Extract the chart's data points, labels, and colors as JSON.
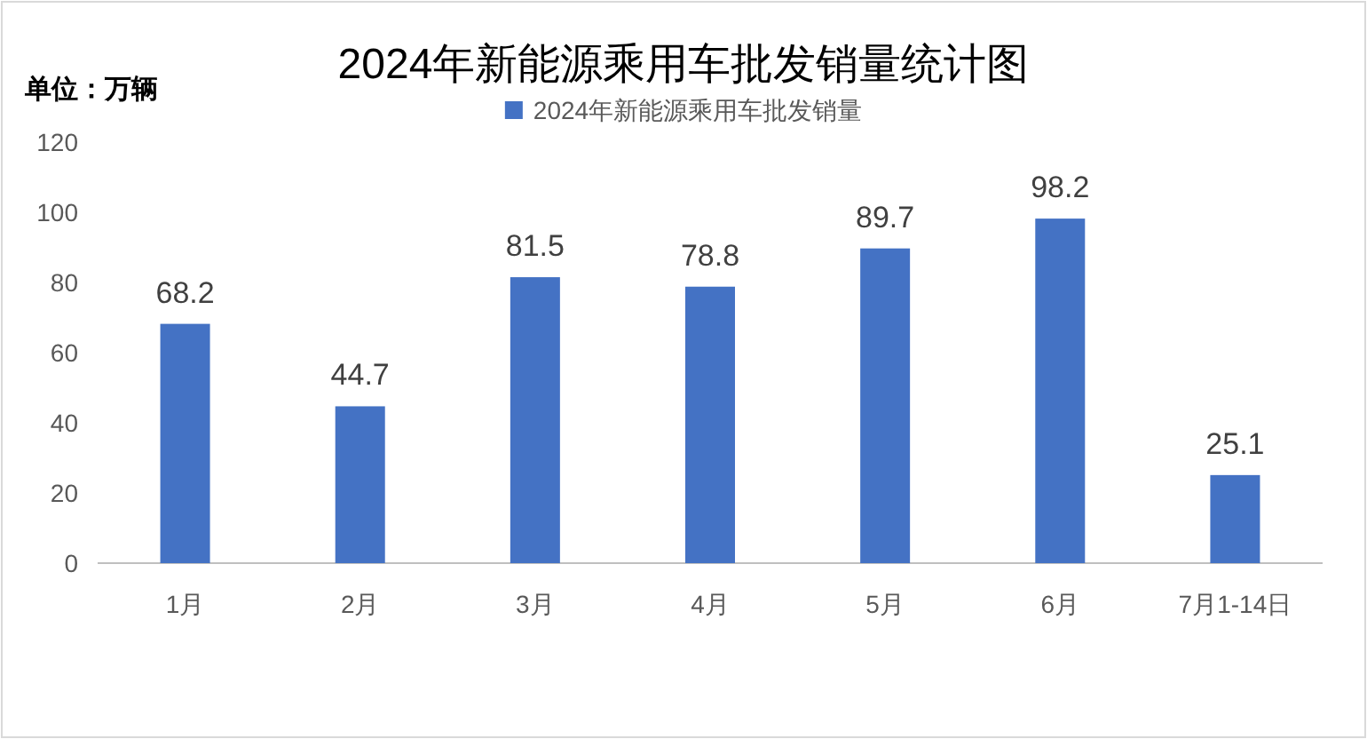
{
  "chart_data": {
    "type": "bar",
    "title": "2024年新能源乘用车批发销量统计图",
    "ylabel": "单位：万辆",
    "categories": [
      "1月",
      "2月",
      "3月",
      "4月",
      "5月",
      "6月",
      "7月1-14日"
    ],
    "series": [
      {
        "name": "2024年新能源乘用车批发销量",
        "color": "#4472c4",
        "values": [
          68.2,
          44.7,
          81.5,
          78.8,
          89.7,
          98.2,
          25.1
        ]
      }
    ],
    "ylim": [
      0,
      120
    ],
    "yticks": [
      0,
      20,
      40,
      60,
      80,
      100,
      120
    ],
    "data_labels": true,
    "grid": false,
    "legend": "top"
  }
}
